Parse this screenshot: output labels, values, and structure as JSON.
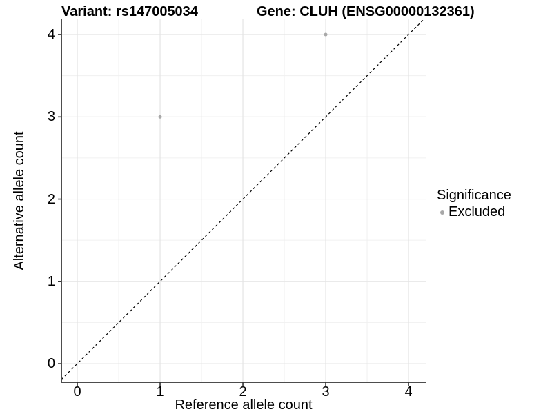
{
  "chart_data": {
    "type": "scatter",
    "title_left": "Variant: rs147005034",
    "title_right": "Gene: CLUH (ENSG00000132361)",
    "xlabel": "Reference allele count",
    "ylabel": "Alternative allele count",
    "xlim": [
      -0.192,
      4.208
    ],
    "ylim": [
      -0.226,
      4.185
    ],
    "x_ticks": [
      0,
      1,
      2,
      3,
      4
    ],
    "y_ticks": [
      0,
      1,
      2,
      3,
      4
    ],
    "x_minor_ticks": [
      0.5,
      1.5,
      2.5,
      3.5
    ],
    "y_minor_ticks": [
      0.5,
      1.5,
      2.5,
      3.5
    ],
    "grid": "on",
    "series": [
      {
        "name": "Excluded",
        "color": "#a8a8a8",
        "points": [
          {
            "x": 1,
            "y": 3
          },
          {
            "x": 3,
            "y": 4
          }
        ]
      }
    ],
    "reference_line": {
      "equation": "y = x",
      "style": "dashed",
      "color": "#000000"
    },
    "legend": {
      "title": "Significance",
      "position": "right",
      "items": [
        {
          "label": "Excluded",
          "color": "#a8a8a8"
        }
      ]
    },
    "colors": {
      "grid_major": "#e4e4e4",
      "grid_minor": "#f0f0f0",
      "axis_line": "#4d4d4d",
      "tick_mark": "#333333",
      "background": "#ffffff"
    }
  }
}
